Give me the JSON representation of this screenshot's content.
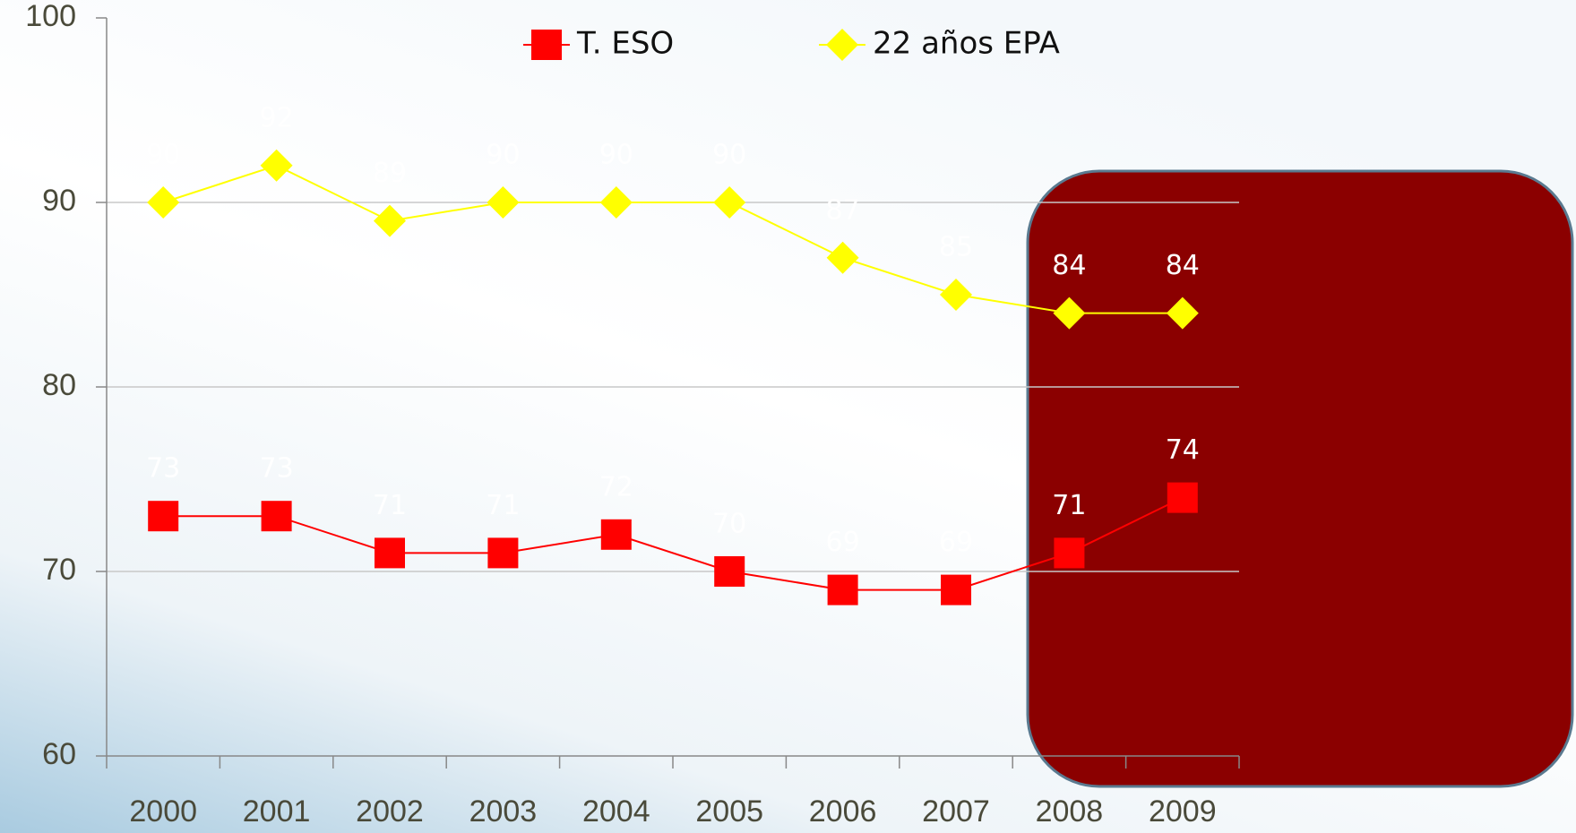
{
  "chart_data": {
    "type": "line",
    "categories": [
      "2000",
      "2001",
      "2002",
      "2003",
      "2004",
      "2005",
      "2006",
      "2007",
      "2008",
      "2009"
    ],
    "series": [
      {
        "name": "T. ESO",
        "color": "#ff0000",
        "marker": "square",
        "values": [
          73,
          73,
          71,
          71,
          72,
          70,
          69,
          69,
          71,
          74
        ]
      },
      {
        "name": "22 años EPA",
        "color": "#ffff00",
        "marker": "diamond",
        "values": [
          90,
          92,
          89,
          90,
          90,
          90,
          87,
          85,
          84,
          84
        ]
      }
    ],
    "ylim": [
      60,
      100
    ],
    "yticks": [
      60,
      70,
      80,
      90,
      100
    ],
    "grid": true,
    "legend": "top"
  }
}
